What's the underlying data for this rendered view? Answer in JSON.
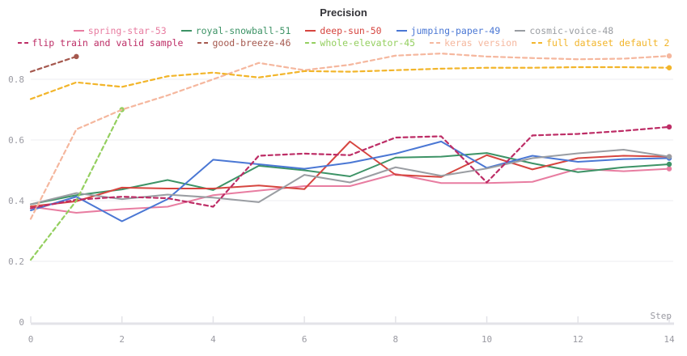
{
  "title": "Precision",
  "axis": {
    "x_label": "Step",
    "x_ticks": [
      0,
      2,
      4,
      6,
      8,
      10,
      12,
      14
    ],
    "y_ticks": [
      {
        "label": "0.8",
        "value": 0.8
      },
      {
        "label": "0.6",
        "value": 0.6
      },
      {
        "label": "0.4",
        "value": 0.4
      },
      {
        "label": "0.2",
        "value": 0.2
      },
      {
        "label": "0",
        "value": 0.0
      }
    ]
  },
  "chart_data": {
    "type": "line",
    "title": "Precision",
    "xlabel": "Step",
    "ylabel": "",
    "x_range": [
      0,
      14
    ],
    "y_range": [
      0,
      0.9
    ],
    "y_gridlines": [
      0.2,
      0.4,
      0.6,
      0.8
    ],
    "grid": "horizontal-only",
    "legend_position": "top",
    "series": [
      {
        "name": "spring-star-53",
        "color": "#e87da1",
        "style": "solid",
        "x": [
          0,
          1,
          2,
          3,
          4,
          5,
          6,
          7,
          8,
          9,
          10,
          11,
          12,
          13,
          14
        ],
        "values": [
          0.38,
          0.36,
          0.372,
          0.38,
          0.418,
          0.433,
          0.448,
          0.448,
          0.488,
          0.458,
          0.458,
          0.462,
          0.505,
          0.497,
          0.505
        ]
      },
      {
        "name": "royal-snowball-51",
        "color": "#3d9366",
        "style": "solid",
        "x": [
          0,
          1,
          2,
          3,
          4,
          5,
          6,
          7,
          8,
          9,
          10,
          11,
          12,
          13,
          14
        ],
        "values": [
          0.388,
          0.418,
          0.437,
          0.468,
          0.435,
          0.515,
          0.5,
          0.48,
          0.542,
          0.545,
          0.557,
          0.523,
          0.494,
          0.51,
          0.52
        ]
      },
      {
        "name": "deep-sun-50",
        "color": "#d6453f",
        "style": "solid",
        "x": [
          0,
          1,
          2,
          3,
          4,
          5,
          6,
          7,
          8,
          9,
          10,
          11,
          12,
          13,
          14
        ],
        "values": [
          0.381,
          0.398,
          0.443,
          0.44,
          0.44,
          0.45,
          0.438,
          0.595,
          0.485,
          0.478,
          0.55,
          0.503,
          0.54,
          0.548,
          0.545
        ]
      },
      {
        "name": "jumping-paper-49",
        "color": "#4a77d4",
        "style": "solid",
        "x": [
          0,
          1,
          2,
          3,
          4,
          5,
          6,
          7,
          8,
          9,
          10,
          11,
          12,
          13,
          14
        ],
        "values": [
          0.368,
          0.413,
          0.332,
          0.405,
          0.535,
          0.52,
          0.505,
          0.525,
          0.555,
          0.595,
          0.508,
          0.548,
          0.528,
          0.537,
          0.54
        ]
      },
      {
        "name": "cosmic-voice-48",
        "color": "#9a9da2",
        "style": "solid",
        "x": [
          0,
          1,
          2,
          3,
          4,
          5,
          6,
          7,
          8,
          9,
          10,
          11,
          12,
          13,
          14
        ],
        "values": [
          0.388,
          0.425,
          0.405,
          0.42,
          0.41,
          0.395,
          0.485,
          0.46,
          0.51,
          0.482,
          0.506,
          0.54,
          0.556,
          0.568,
          0.545
        ]
      },
      {
        "name": "flip train and valid sample",
        "color": "#bd2d66",
        "style": "dashed",
        "x": [
          0,
          1,
          2,
          3,
          4,
          5,
          6,
          7,
          8,
          9,
          10,
          11,
          12,
          13,
          14
        ],
        "values": [
          0.375,
          0.403,
          0.413,
          0.408,
          0.38,
          0.548,
          0.555,
          0.55,
          0.608,
          0.612,
          0.46,
          0.615,
          0.62,
          0.63,
          0.643
        ]
      },
      {
        "name": "good-breeze-46",
        "color": "#a5584e",
        "style": "dashed",
        "x": [
          0,
          1
        ],
        "values": [
          0.825,
          0.875
        ]
      },
      {
        "name": "whole-elevator-45",
        "color": "#94cf5f",
        "style": "dashed",
        "x": [
          0,
          1,
          2
        ],
        "values": [
          0.205,
          0.4,
          0.7
        ]
      },
      {
        "name": "keras version",
        "color": "#f5b79e",
        "style": "dashed",
        "x": [
          0,
          1,
          2,
          3,
          4,
          5,
          6,
          7,
          8,
          9,
          10,
          11,
          12,
          13,
          14
        ],
        "values": [
          0.34,
          0.635,
          0.7,
          0.747,
          0.8,
          0.854,
          0.83,
          0.848,
          0.878,
          0.885,
          0.875,
          0.87,
          0.866,
          0.868,
          0.877
        ]
      },
      {
        "name": "full dataset default 2",
        "color": "#f2b52a",
        "style": "dashed",
        "x": [
          0,
          1,
          2,
          3,
          4,
          5,
          6,
          7,
          8,
          9,
          10,
          11,
          12,
          13,
          14
        ],
        "values": [
          0.735,
          0.79,
          0.775,
          0.81,
          0.822,
          0.806,
          0.827,
          0.825,
          0.83,
          0.835,
          0.838,
          0.838,
          0.84,
          0.84,
          0.838
        ]
      }
    ]
  }
}
